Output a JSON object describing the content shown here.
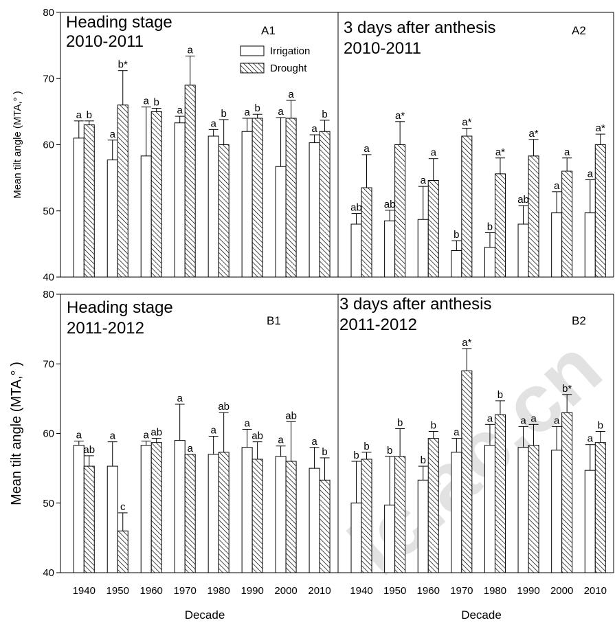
{
  "watermark": "ic.ac.cn",
  "legend": [
    {
      "label": "Irrigation",
      "pattern": "open"
    },
    {
      "label": "Drought",
      "pattern": "hatched"
    }
  ],
  "shared": {
    "categories": [
      "1940",
      "1950",
      "1960",
      "1970",
      "1980",
      "1990",
      "2000",
      "2010"
    ],
    "xlabel": "Decade",
    "ylim": [
      40,
      80
    ],
    "yticks": [
      40,
      50,
      60,
      70,
      80
    ]
  },
  "chart_data": [
    {
      "type": "bar",
      "panel": "A1",
      "title_lines": [
        "Heading stage",
        "2010-2011"
      ],
      "ylabel": "Mean tilt angle (MTA,° )",
      "categories": [
        "1940",
        "1950",
        "1960",
        "1970",
        "1980",
        "1990",
        "2000",
        "2010"
      ],
      "ylim": [
        40,
        80
      ],
      "series": [
        {
          "name": "Irrigation",
          "values": [
            61.0,
            57.7,
            58.3,
            63.3,
            61.3,
            62.0,
            56.7,
            60.3
          ],
          "errors": [
            2.6,
            3.0,
            7.4,
            1.0,
            1.0,
            2.0,
            7.4,
            1.2
          ],
          "labels": [
            "a",
            "a",
            "a",
            "a",
            "a",
            "a",
            "a",
            "a"
          ]
        },
        {
          "name": "Drought",
          "values": [
            63.0,
            66.0,
            65.0,
            69.0,
            60.0,
            64.0,
            64.0,
            62.0
          ],
          "errors": [
            0.6,
            5.2,
            0.5,
            4.4,
            3.8,
            0.6,
            2.7,
            1.7
          ],
          "labels": [
            "b",
            "b*",
            "b",
            "a",
            "b",
            "b",
            "a",
            "b"
          ]
        }
      ]
    },
    {
      "type": "bar",
      "panel": "A2",
      "title_lines": [
        "3 days after anthesis",
        "2010-2011"
      ],
      "categories": [
        "1940",
        "1950",
        "1960",
        "1970",
        "1980",
        "1990",
        "2000",
        "2010"
      ],
      "ylim": [
        40,
        80
      ],
      "series": [
        {
          "name": "Irrigation",
          "values": [
            48.0,
            48.5,
            48.7,
            44.0,
            44.5,
            48.0,
            49.7,
            49.7
          ],
          "errors": [
            1.6,
            1.6,
            5.0,
            1.5,
            2.2,
            2.8,
            3.2,
            5.0
          ],
          "labels": [
            "ab",
            "ab",
            "a",
            "b",
            "b",
            "ab",
            "a",
            "a"
          ]
        },
        {
          "name": "Drought",
          "values": [
            53.5,
            60.0,
            54.6,
            61.3,
            55.6,
            58.3,
            56.0,
            60.0
          ],
          "errors": [
            5.0,
            3.5,
            3.3,
            1.2,
            2.4,
            2.5,
            2.0,
            1.6
          ],
          "labels": [
            "a",
            "a*",
            "a",
            "a*",
            "a*",
            "a*",
            "a",
            "a*"
          ]
        }
      ]
    },
    {
      "type": "bar",
      "panel": "B1",
      "title_lines": [
        "Heading stage",
        "2011-2012"
      ],
      "ylabel": "Mean tilt angle (MTA,° )",
      "categories": [
        "1940",
        "1950",
        "1960",
        "1970",
        "1980",
        "1990",
        "2000",
        "2010"
      ],
      "ylim": [
        40,
        80
      ],
      "series": [
        {
          "name": "Irrigation",
          "values": [
            58.3,
            55.3,
            58.3,
            59.0,
            57.0,
            58.0,
            56.7,
            55.0
          ],
          "errors": [
            0.6,
            3.5,
            0.6,
            5.2,
            2.6,
            2.6,
            1.5,
            3.0
          ],
          "labels": [
            "a",
            "a",
            "a",
            "a",
            "a",
            "a",
            "a",
            "a"
          ]
        },
        {
          "name": "Drought",
          "values": [
            55.3,
            46.0,
            58.7,
            57.0,
            57.3,
            56.3,
            56.0,
            53.3
          ],
          "errors": [
            1.5,
            2.6,
            0.6,
            0.0,
            5.7,
            2.5,
            5.7,
            3.2
          ],
          "labels": [
            "ab",
            "c",
            "ab",
            "a",
            "ab",
            "ab",
            "ab",
            "b"
          ]
        }
      ]
    },
    {
      "type": "bar",
      "panel": "B2",
      "title_lines": [
        "3 days after anthesis",
        "2011-2012"
      ],
      "xlabel": "Decade",
      "categories": [
        "1940",
        "1950",
        "1960",
        "1970",
        "1980",
        "1990",
        "2000",
        "2010"
      ],
      "ylim": [
        40,
        80
      ],
      "series": [
        {
          "name": "Irrigation",
          "values": [
            50.0,
            49.7,
            53.3,
            57.3,
            58.3,
            58.0,
            57.6,
            54.7
          ],
          "errors": [
            6.0,
            7.0,
            2.0,
            2.0,
            3.0,
            3.0,
            3.4,
            3.7
          ],
          "labels": [
            "b",
            "b",
            "b",
            "a",
            "a",
            "a",
            "a",
            "a"
          ]
        },
        {
          "name": "Drought",
          "values": [
            56.3,
            56.7,
            59.3,
            69.0,
            62.7,
            58.3,
            63.0,
            58.7
          ],
          "errors": [
            1.0,
            4.0,
            1.0,
            3.2,
            2.0,
            3.0,
            2.6,
            1.6
          ],
          "labels": [
            "b",
            "b",
            "b",
            "a*",
            "b",
            "a",
            "b*",
            "b"
          ]
        }
      ]
    }
  ]
}
